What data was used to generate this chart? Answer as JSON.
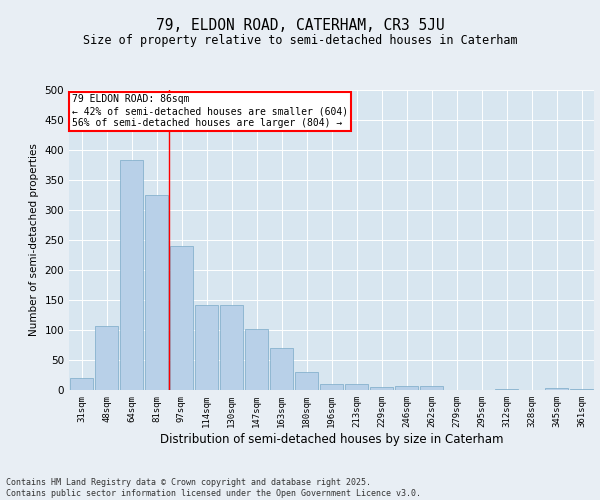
{
  "title1": "79, ELDON ROAD, CATERHAM, CR3 5JU",
  "title2": "Size of property relative to semi-detached houses in Caterham",
  "xlabel": "Distribution of semi-detached houses by size in Caterham",
  "ylabel": "Number of semi-detached properties",
  "categories": [
    "31sqm",
    "48sqm",
    "64sqm",
    "81sqm",
    "97sqm",
    "114sqm",
    "130sqm",
    "147sqm",
    "163sqm",
    "180sqm",
    "196sqm",
    "213sqm",
    "229sqm",
    "246sqm",
    "262sqm",
    "279sqm",
    "295sqm",
    "312sqm",
    "328sqm",
    "345sqm",
    "361sqm"
  ],
  "values": [
    20,
    107,
    383,
    325,
    240,
    142,
    142,
    102,
    70,
    30,
    10,
    10,
    5,
    7,
    7,
    0,
    0,
    1,
    0,
    3,
    2
  ],
  "bar_color": "#b8d0e8",
  "bar_edge_color": "#7aaac8",
  "property_label": "79 ELDON ROAD: 86sqm",
  "pct_smaller": 42,
  "n_smaller": 604,
  "pct_larger": 56,
  "n_larger": 804,
  "vline_bin_index": 3.5,
  "ylim": [
    0,
    500
  ],
  "yticks": [
    0,
    50,
    100,
    150,
    200,
    250,
    300,
    350,
    400,
    450,
    500
  ],
  "background_color": "#e8eef4",
  "plot_bg_color": "#d8e6f0",
  "grid_color": "#ffffff",
  "footer": "Contains HM Land Registry data © Crown copyright and database right 2025.\nContains public sector information licensed under the Open Government Licence v3.0."
}
